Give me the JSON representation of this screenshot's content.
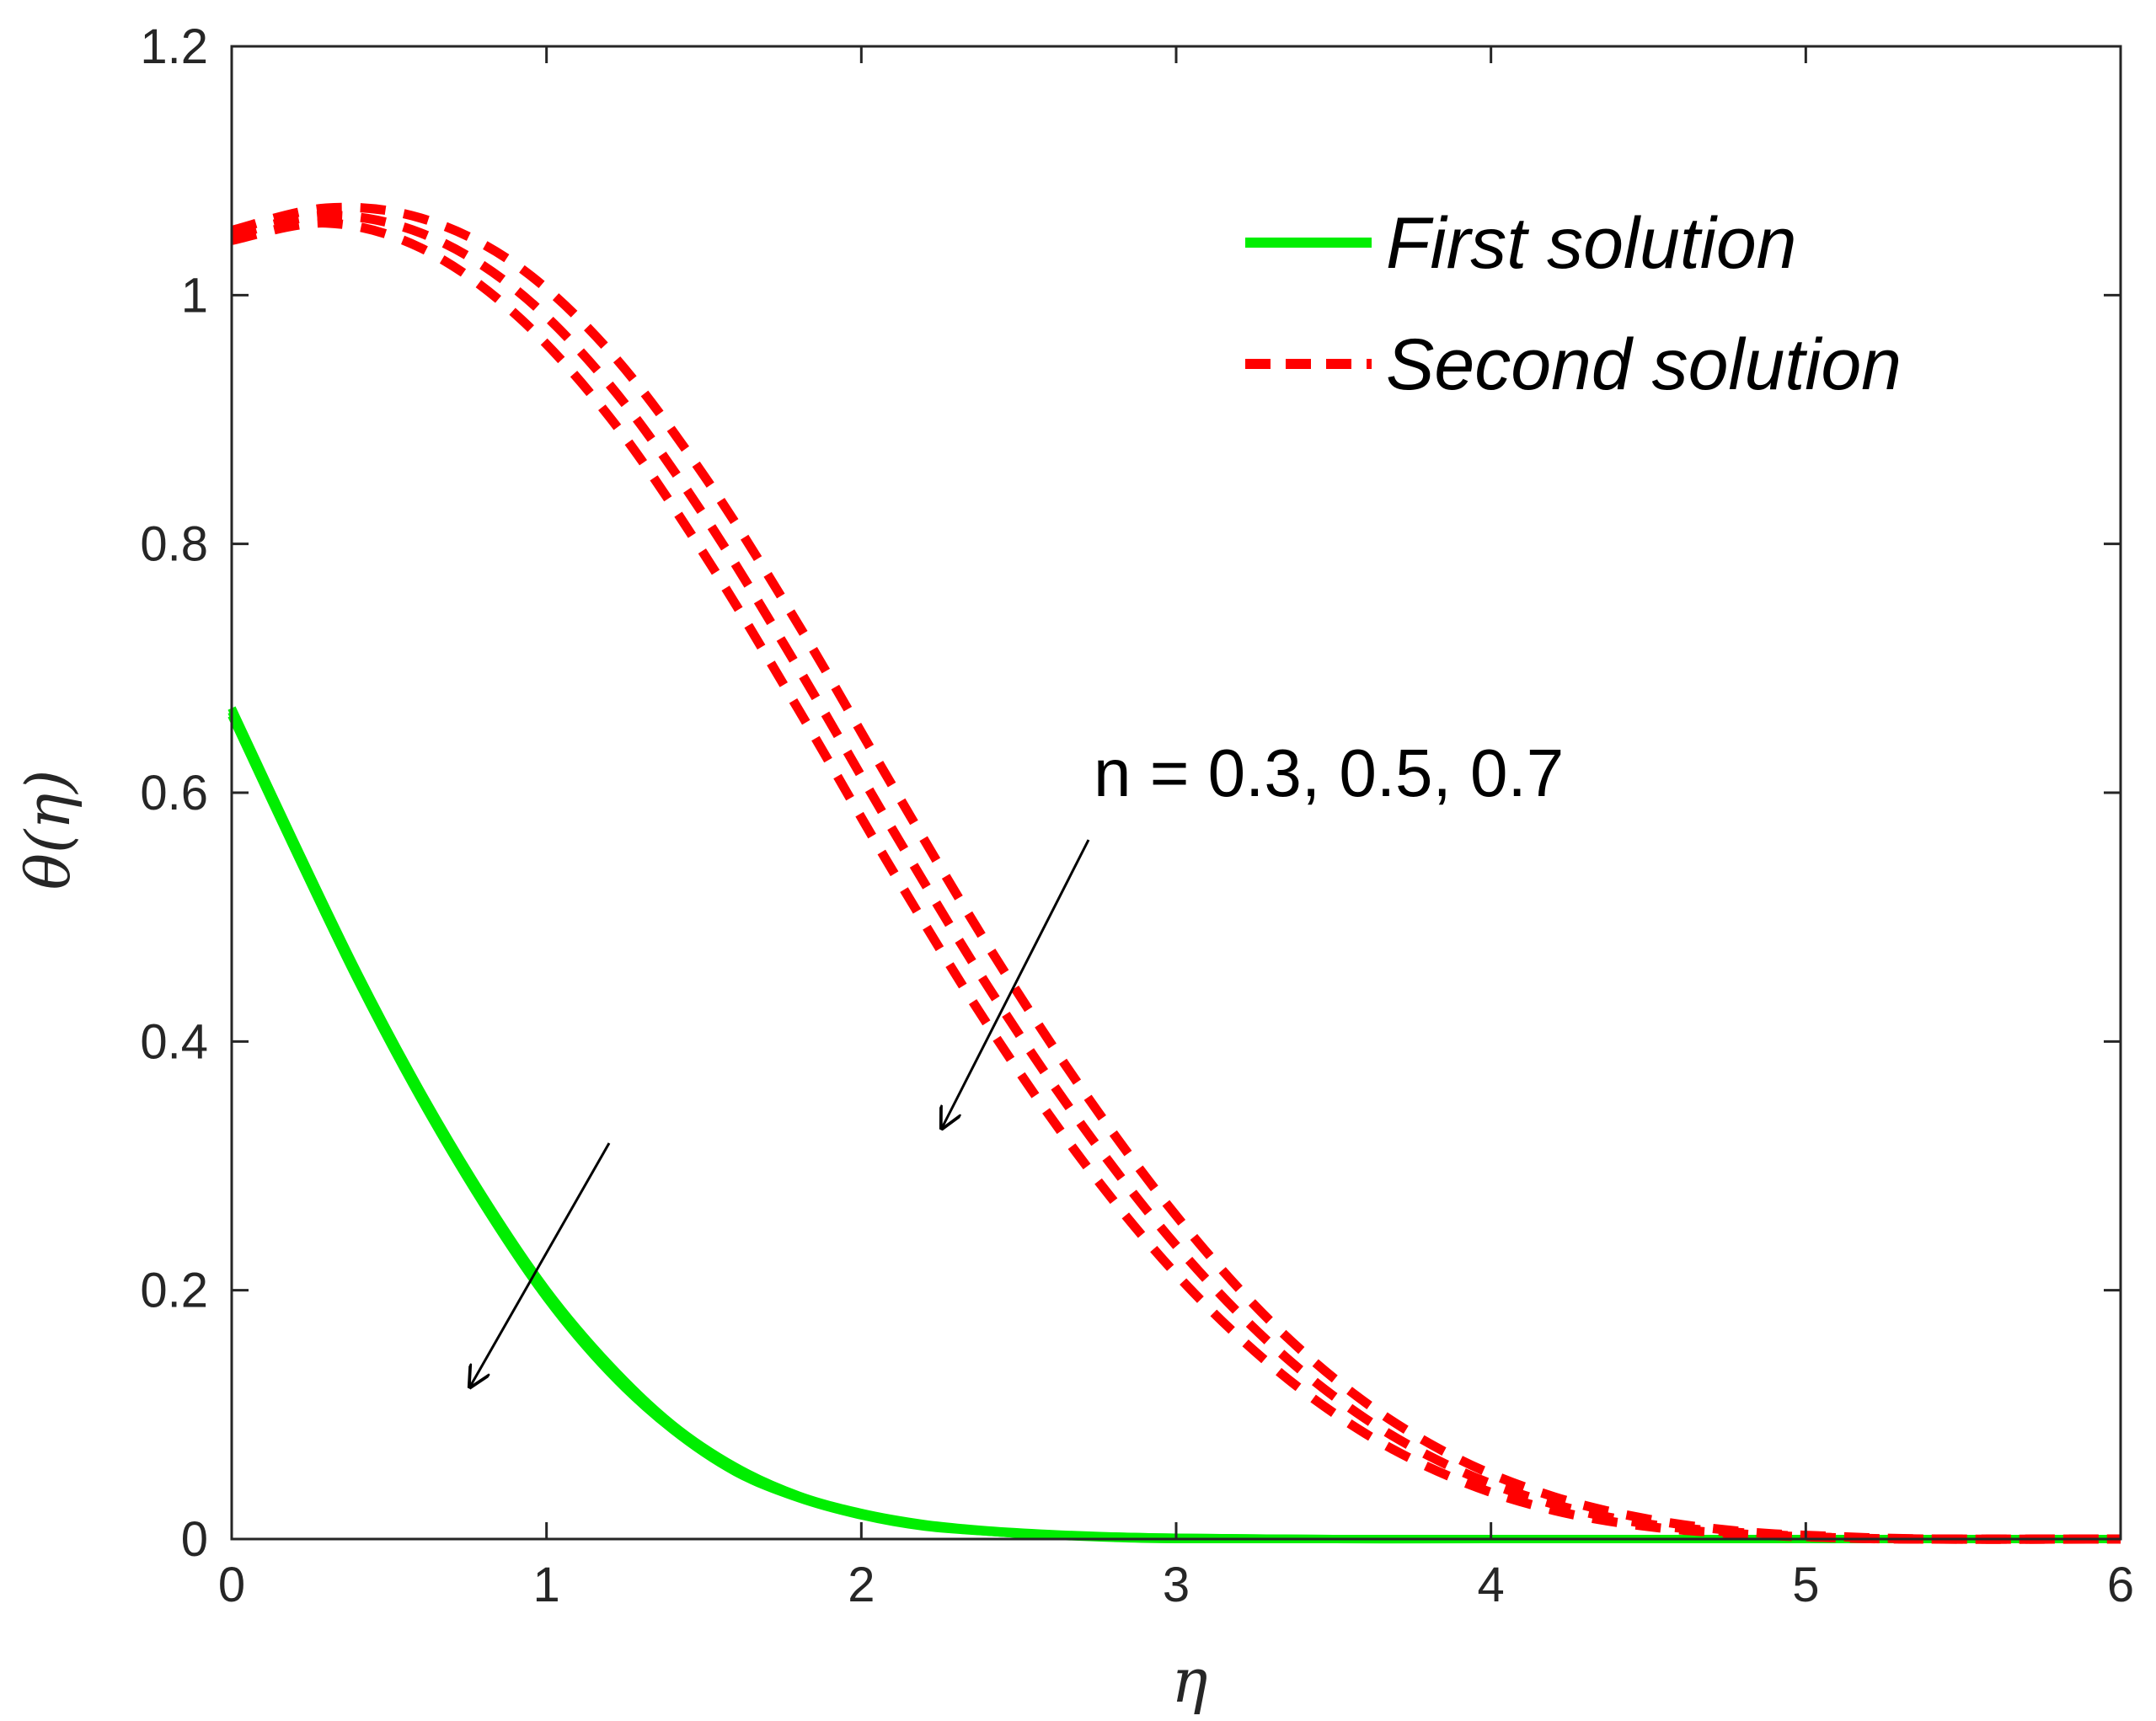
{
  "chart_data": {
    "type": "line",
    "xlabel": "η",
    "ylabel": "θ(η)",
    "xlim": [
      0,
      6
    ],
    "ylim": [
      0,
      1.2
    ],
    "xticks": [
      "0",
      "1",
      "2",
      "3",
      "4",
      "5",
      "6"
    ],
    "yticks": [
      "0",
      "0.2",
      "0.4",
      "0.6",
      "0.8",
      "1",
      "1.2"
    ],
    "grid": false,
    "legend_position": "top-right",
    "legend": [
      {
        "label": "First solution",
        "style": "solid",
        "color": "#00ee00"
      },
      {
        "label": "Second solution",
        "style": "dashed",
        "color": "#ff0000"
      }
    ],
    "annotation": "n = 0.3, 0.5, 0.7",
    "series": [
      {
        "solution": "First solution",
        "n": 0.3,
        "x": [
          0,
          0.2,
          0.4,
          0.6,
          0.8,
          1.0,
          1.2,
          1.4,
          1.6,
          1.8,
          2.0,
          2.2,
          2.4,
          2.6,
          2.8,
          3.0,
          3.5,
          4.0,
          5.0,
          6.0
        ],
        "y": [
          0.668,
          0.56,
          0.455,
          0.36,
          0.275,
          0.2,
          0.14,
          0.092,
          0.058,
          0.035,
          0.021,
          0.012,
          0.007,
          0.004,
          0.002,
          0.001,
          0.0,
          0.0,
          0.0,
          0.0
        ]
      },
      {
        "solution": "First solution",
        "n": 0.5,
        "x": [
          0,
          0.2,
          0.4,
          0.6,
          0.8,
          1.0,
          1.2,
          1.4,
          1.6,
          1.8,
          2.0,
          2.2,
          2.4,
          2.6,
          2.8,
          3.0,
          3.5,
          4.0,
          5.0,
          6.0
        ],
        "y": [
          0.665,
          0.557,
          0.452,
          0.357,
          0.272,
          0.197,
          0.137,
          0.09,
          0.056,
          0.034,
          0.02,
          0.011,
          0.006,
          0.003,
          0.002,
          0.001,
          0.0,
          0.0,
          0.0,
          0.0
        ]
      },
      {
        "solution": "First solution",
        "n": 0.7,
        "x": [
          0,
          0.2,
          0.4,
          0.6,
          0.8,
          1.0,
          1.2,
          1.4,
          1.6,
          1.8,
          2.0,
          2.2,
          2.4,
          2.6,
          2.8,
          3.0,
          3.5,
          4.0,
          5.0,
          6.0
        ],
        "y": [
          0.662,
          0.554,
          0.449,
          0.354,
          0.269,
          0.194,
          0.134,
          0.088,
          0.054,
          0.033,
          0.019,
          0.01,
          0.006,
          0.003,
          0.001,
          0.0,
          0.0,
          0.0,
          0.0,
          0.0
        ]
      },
      {
        "solution": "Second solution",
        "n": 0.3,
        "x": [
          0,
          0.3,
          0.6,
          0.9,
          1.2,
          1.5,
          1.8,
          2.1,
          2.4,
          2.7,
          3.0,
          3.3,
          3.6,
          3.9,
          4.2,
          4.5,
          4.8,
          5.1,
          5.4,
          6.0
        ],
        "y": [
          1.052,
          1.07,
          1.062,
          1.025,
          0.955,
          0.855,
          0.735,
          0.605,
          0.478,
          0.362,
          0.26,
          0.175,
          0.11,
          0.064,
          0.034,
          0.016,
          0.006,
          0.002,
          0.0,
          0.0
        ]
      },
      {
        "solution": "Second solution",
        "n": 0.5,
        "x": [
          0,
          0.3,
          0.6,
          0.9,
          1.2,
          1.5,
          1.8,
          2.1,
          2.4,
          2.7,
          3.0,
          3.3,
          3.6,
          3.9,
          4.2,
          4.5,
          4.8,
          5.1,
          5.4,
          6.0
        ],
        "y": [
          1.048,
          1.064,
          1.05,
          1.005,
          0.928,
          0.823,
          0.7,
          0.57,
          0.445,
          0.333,
          0.236,
          0.157,
          0.097,
          0.055,
          0.028,
          0.012,
          0.005,
          0.001,
          0.0,
          0.0
        ]
      },
      {
        "solution": "Second solution",
        "n": 0.7,
        "x": [
          0,
          0.3,
          0.6,
          0.9,
          1.2,
          1.5,
          1.8,
          2.1,
          2.4,
          2.7,
          3.0,
          3.3,
          3.6,
          3.9,
          4.2,
          4.5,
          4.8,
          5.1,
          5.4,
          6.0
        ],
        "y": [
          1.044,
          1.058,
          1.038,
          0.985,
          0.902,
          0.792,
          0.667,
          0.537,
          0.414,
          0.305,
          0.213,
          0.14,
          0.085,
          0.047,
          0.023,
          0.01,
          0.004,
          0.001,
          0.0,
          0.0
        ]
      }
    ]
  }
}
